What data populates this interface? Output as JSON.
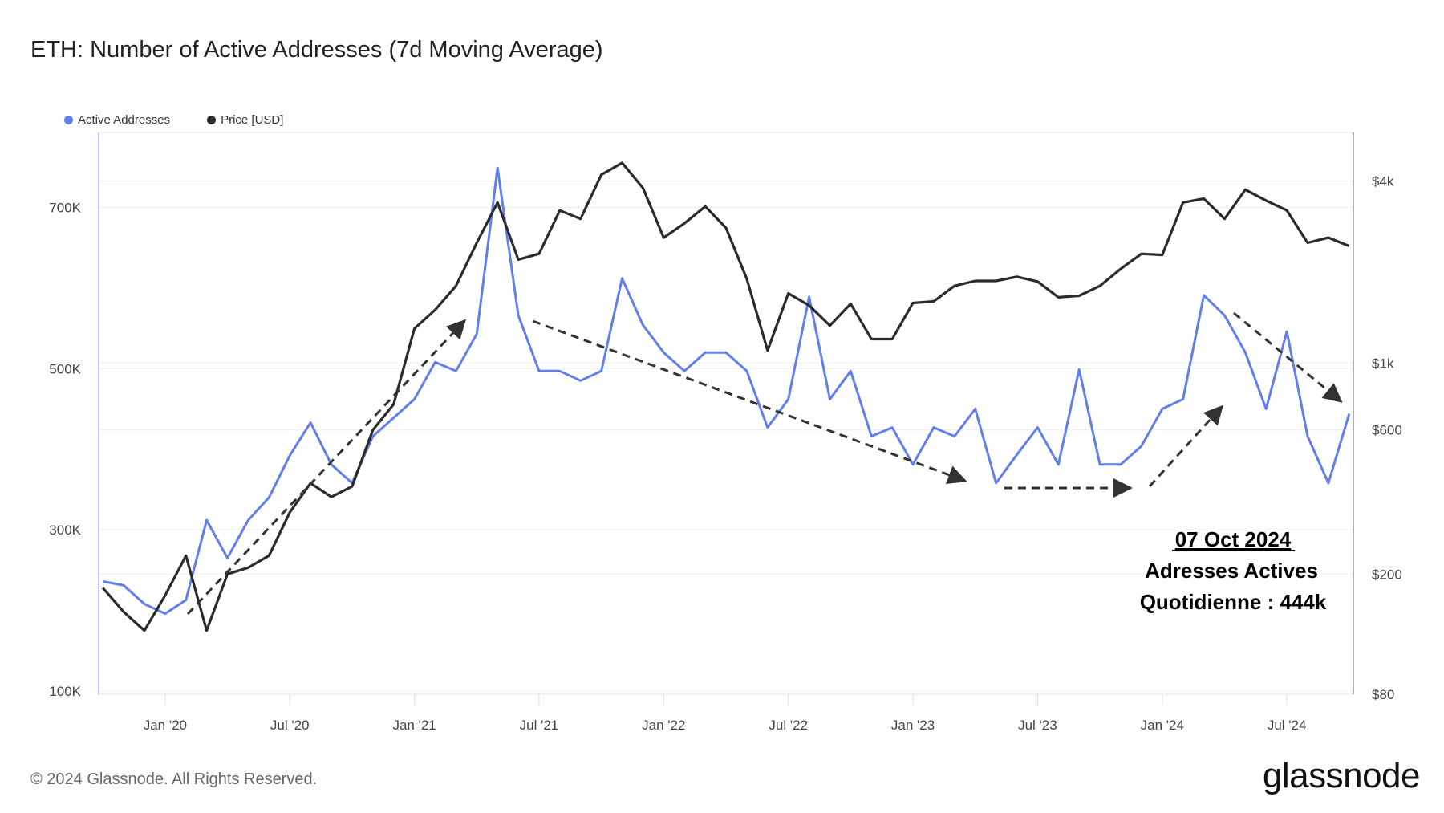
{
  "title": "ETH: Number of Active Addresses (7d Moving Average)",
  "footer": "© 2024 Glassnode. All Rights Reserved.",
  "logo": "glassnode",
  "chart_data": {
    "type": "line",
    "title": "ETH: Number of Active Addresses (7d Moving Average)",
    "legend_position": "top-left",
    "grid": true,
    "x": [
      "2019-10",
      "2019-11",
      "2019-12",
      "2020-01",
      "2020-02",
      "2020-03",
      "2020-04",
      "2020-05",
      "2020-06",
      "2020-07",
      "2020-08",
      "2020-09",
      "2020-10",
      "2020-11",
      "2020-12",
      "2021-01",
      "2021-02",
      "2021-03",
      "2021-04",
      "2021-05",
      "2021-06",
      "2021-07",
      "2021-08",
      "2021-09",
      "2021-10",
      "2021-11",
      "2021-12",
      "2022-01",
      "2022-02",
      "2022-03",
      "2022-04",
      "2022-05",
      "2022-06",
      "2022-07",
      "2022-08",
      "2022-09",
      "2022-10",
      "2022-11",
      "2022-12",
      "2023-01",
      "2023-02",
      "2023-03",
      "2023-04",
      "2023-05",
      "2023-06",
      "2023-07",
      "2023-08",
      "2023-09",
      "2023-10",
      "2023-11",
      "2023-12",
      "2024-01",
      "2024-02",
      "2024-03",
      "2024-04",
      "2024-05",
      "2024-06",
      "2024-07",
      "2024-08",
      "2024-09",
      "2024-10"
    ],
    "x_ticks": [
      "Jan '20",
      "Jul '20",
      "Jan '21",
      "Jul '21",
      "Jan '22",
      "Jul '22",
      "Jan '23",
      "Jul '23",
      "Jan '24",
      "Jul '24"
    ],
    "x_tick_values": [
      "2020-01",
      "2020-07",
      "2021-01",
      "2021-07",
      "2022-01",
      "2022-07",
      "2023-01",
      "2023-07",
      "2024-01",
      "2024-07"
    ],
    "y_left": {
      "ticks": [
        "100K",
        "300K",
        "500K",
        "700K"
      ],
      "tick_values": [
        100,
        300,
        500,
        700
      ],
      "ylim": [
        96,
        793
      ],
      "unit": "K",
      "scale": "linear"
    },
    "y_right": {
      "ticks": [
        "$80",
        "$200",
        "$600",
        "$1k",
        "$4k"
      ],
      "tick_values": [
        80,
        200,
        600,
        1000,
        4000
      ],
      "ylim": [
        80,
        5800
      ],
      "scale": "log"
    },
    "series": [
      {
        "name": "Active Addresses",
        "axis": "left",
        "color": "#627eea",
        "values": [
          236,
          231,
          208,
          196,
          213,
          312,
          265,
          312,
          340,
          392,
          433,
          381,
          358,
          416,
          439,
          462,
          508,
          497,
          543,
          749,
          566,
          497,
          497,
          485,
          497,
          612,
          554,
          520,
          497,
          520,
          520,
          497,
          427,
          462,
          589,
          462,
          497,
          416,
          427,
          381,
          427,
          416,
          450,
          358,
          393,
          427,
          381,
          499,
          381,
          381,
          404,
          450,
          462,
          591,
          566,
          520,
          450,
          546,
          416,
          358,
          444
        ]
      },
      {
        "name": "Price [USD]",
        "axis": "right",
        "color": "#2b2b2b",
        "values": [
          180,
          150,
          130,
          170,
          230,
          130,
          200,
          210,
          230,
          320,
          400,
          360,
          390,
          600,
          730,
          1300,
          1500,
          1800,
          2500,
          3400,
          2200,
          2300,
          3200,
          3000,
          4200,
          4600,
          3800,
          2600,
          2900,
          3300,
          2800,
          1900,
          1100,
          1700,
          1550,
          1330,
          1570,
          1200,
          1200,
          1580,
          1600,
          1800,
          1870,
          1870,
          1930,
          1860,
          1650,
          1670,
          1800,
          2050,
          2300,
          2280,
          3400,
          3500,
          3000,
          3750,
          3450,
          3200,
          2500,
          2600,
          2440
        ]
      }
    ],
    "annotation": {
      "date": "07 Oct 2024",
      "line1": "Adresses Actives",
      "line2": "Quotidienne : 444k"
    }
  }
}
